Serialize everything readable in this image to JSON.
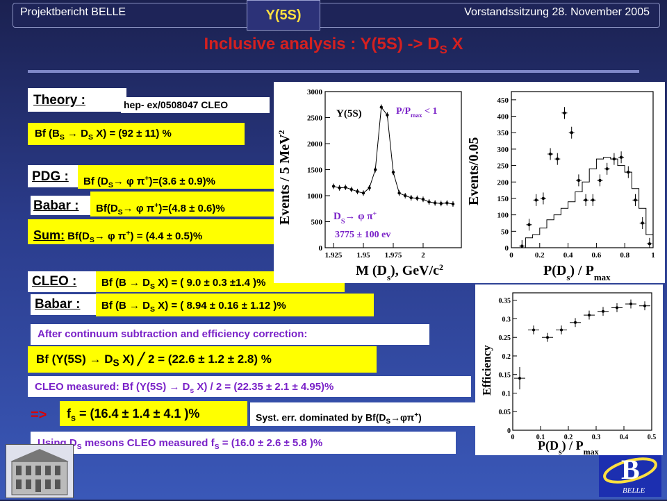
{
  "header": {
    "left": "Projektbericht BELLE",
    "tab": "Y(5S)",
    "right": "Vorstandssitzung 28. November 2005"
  },
  "title": {
    "main": "Inclusive analysis : Y(5S) -> D",
    "sub": "S",
    "tail": " X"
  },
  "theory": {
    "label": "Theory :",
    "ref": "hep- ex/0508047 CLEO",
    "bf": "Bf (B",
    "bf_sub1": "S",
    "bf_mid": " → D",
    "bf_sub2": "S",
    "bf_end": " X) = (92 ± 11) %"
  },
  "pdg": {
    "label": "PDG :",
    "pre": "Bf (D",
    "sub": "S",
    "mid": "→ φ π",
    "sup": "+",
    "end": ")=(3.6 ± 0.9)%"
  },
  "babar1": {
    "label": "Babar :",
    "pre": "Bf(D",
    "sub": "S",
    "mid": "→ φ π",
    "sup": "+",
    "end": ")=(4.8 ± 0.6)%"
  },
  "sum": {
    "label": "Sum:",
    "pre": " Bf(D",
    "sub": "S",
    "mid": "→ φ π",
    "sup": "+",
    "end": ") = (4.4 ± 0.5)%"
  },
  "cleo": {
    "label": "CLEO :",
    "pre": "Bf (B → D",
    "sub": "S",
    "end": " X) = ( 9.0 ± 0.3 ±1.4 )%"
  },
  "babar2": {
    "label": "Babar :",
    "pre": "Bf (B → D",
    "sub": "S",
    "end": " X) = ( 8.94 ± 0.16 ± 1.12 )%"
  },
  "after": "After continuum subtraction and efficiency correction:",
  "result": {
    "pre": "Bf (Y(5S) → D",
    "sub": "S",
    "end": " X) ╱ 2 = (22.6 ± 1.2 ± 2.8) %"
  },
  "cleo_measured": {
    "pre": "CLEO measured:  Bf (Y(5S) → D",
    "sub": "s",
    "end": " X) / 2 = (22.35 ± 2.1 ± 4.95)%"
  },
  "implies": "=>",
  "fs": {
    "pre": "f",
    "sub": "s",
    "end": " = (16.4 ± 1.4 ± 4.1 )%"
  },
  "syst": {
    "pre": "Syst. err. dominated by Bf(D",
    "sub": "S",
    "mid": "→φπ",
    "sup": "+",
    "end": ")"
  },
  "using": {
    "pre": "Using D",
    "sub": "S",
    "mid": " mesons CLEO measured f",
    "sub2": "S",
    "end": " = (16.0 ± 2.6 ± 5.8 )%"
  },
  "colors": {
    "title": "#d42020",
    "highlight": "#ffff00",
    "label_violet": "#7a22c8",
    "tab_text": "#ffe040"
  },
  "chart_data": [
    {
      "type": "line",
      "xlabel": "M (D",
      "xlabel_sub": "s",
      "xlabel_end": "), GeV/c",
      "xlabel_sup": "2",
      "ylabel": "Events / 5 MeV",
      "ylabel_sup": "2",
      "annotation_1": "Y(5S)",
      "annotation_2": "P/P",
      "annotation_2_sub": "max",
      "annotation_2_end": " < 1",
      "annotation_3": "D",
      "annotation_3_sub": "S",
      "annotation_3_mid": "→ φ π",
      "annotation_3_sup": "+",
      "annotation_4": "3775 ± 100 ev",
      "xlim": [
        1.918,
        2.032
      ],
      "ylim": [
        0,
        3000
      ],
      "xticks": [
        "1.925",
        "1.95",
        "1.975",
        "2"
      ],
      "yticks": [
        "0",
        "500",
        "1000",
        "1500",
        "2000",
        "2500",
        "3000"
      ],
      "x": [
        1.925,
        1.93,
        1.935,
        1.94,
        1.945,
        1.95,
        1.955,
        1.96,
        1.965,
        1.97,
        1.975,
        1.98,
        1.985,
        1.99,
        1.995,
        2.0,
        2.005,
        2.01,
        2.015,
        2.02,
        2.025
      ],
      "y": [
        1180,
        1150,
        1160,
        1120,
        1080,
        1050,
        1150,
        1500,
        2700,
        2550,
        1450,
        1050,
        1000,
        960,
        950,
        930,
        880,
        860,
        850,
        860,
        840
      ]
    },
    {
      "type": "scatter",
      "xlabel": "P(D",
      "xlabel_sub": "s",
      "xlabel_end": ") / P",
      "xlabel_sub2": "max",
      "ylabel": "Events/0.05",
      "xlim": [
        0,
        1
      ],
      "ylim": [
        0,
        475
      ],
      "xticks": [
        "0",
        "0.2",
        "0.4",
        "0.6",
        "0.8",
        "1"
      ],
      "yticks": [
        "0",
        "50",
        "100",
        "150",
        "200",
        "250",
        "300",
        "350",
        "400",
        "450"
      ],
      "points_x": [
        0.075,
        0.125,
        0.175,
        0.225,
        0.275,
        0.325,
        0.375,
        0.425,
        0.475,
        0.525,
        0.575,
        0.625,
        0.675,
        0.725,
        0.775,
        0.825,
        0.875,
        0.925,
        0.975
      ],
      "points_y": [
        5,
        70,
        145,
        150,
        285,
        270,
        410,
        350,
        205,
        145,
        145,
        205,
        240,
        270,
        275,
        230,
        145,
        75,
        12
      ],
      "hist_y": [
        0,
        30,
        40,
        60,
        85,
        100,
        120,
        140,
        170,
        200,
        240,
        270,
        275,
        270,
        250,
        230,
        180,
        120,
        40
      ]
    },
    {
      "type": "scatter",
      "xlabel": "P(D",
      "xlabel_sub": "s",
      "xlabel_end": ") / P",
      "xlabel_sub2": "max",
      "ylabel": "Efficiency",
      "xlim": [
        0,
        0.5
      ],
      "ylim": [
        0,
        0.37
      ],
      "xticks": [
        "0",
        "0.1",
        "0.2",
        "0.3",
        "0.4",
        "0.5"
      ],
      "yticks": [
        "0",
        "0.05",
        "0.1",
        "0.15",
        "0.2",
        "0.25",
        "0.3",
        "0.35"
      ],
      "x": [
        0.025,
        0.075,
        0.125,
        0.175,
        0.225,
        0.275,
        0.325,
        0.375,
        0.425,
        0.475
      ],
      "y": [
        0.14,
        0.27,
        0.25,
        0.27,
        0.29,
        0.31,
        0.32,
        0.33,
        0.34,
        0.335
      ]
    }
  ]
}
